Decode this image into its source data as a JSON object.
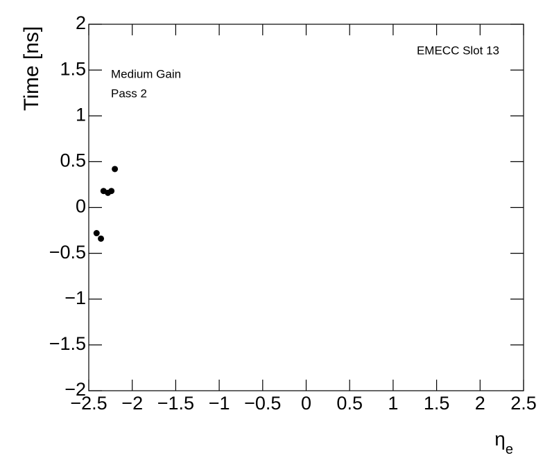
{
  "chart_data": {
    "type": "scatter",
    "y_label": "Time [ns]",
    "x_label": {
      "symbol": "η",
      "subscript": "e"
    },
    "annotations": [
      "EMECC Slot 13",
      "Medium Gain",
      "Pass 2"
    ],
    "x": [
      -2.41,
      -2.36,
      -2.33,
      -2.28,
      -2.24,
      -2.2
    ],
    "values": [
      -0.28,
      -0.34,
      0.18,
      0.16,
      0.18,
      0.42
    ],
    "color": "#000000",
    "xlim": [
      -2.5,
      2.5
    ],
    "xticks": [
      {
        "value": -2.5,
        "label": "−2.5"
      },
      {
        "value": -2,
        "label": "−2"
      },
      {
        "value": -1.5,
        "label": "−1.5"
      },
      {
        "value": -1,
        "label": "−1"
      },
      {
        "value": -0.5,
        "label": "−0.5"
      },
      0,
      0.5,
      1,
      1.5,
      2,
      2.5
    ],
    "ylim": [
      -2,
      2
    ],
    "yticks": [
      {
        "value": -2,
        "label": "−2"
      },
      {
        "value": -1.5,
        "label": "−1.5"
      },
      {
        "value": -1,
        "label": "−1"
      },
      {
        "value": -0.5,
        "label": "−0.5"
      },
      0,
      0.5,
      1,
      1.5,
      2
    ],
    "grid": false
  }
}
